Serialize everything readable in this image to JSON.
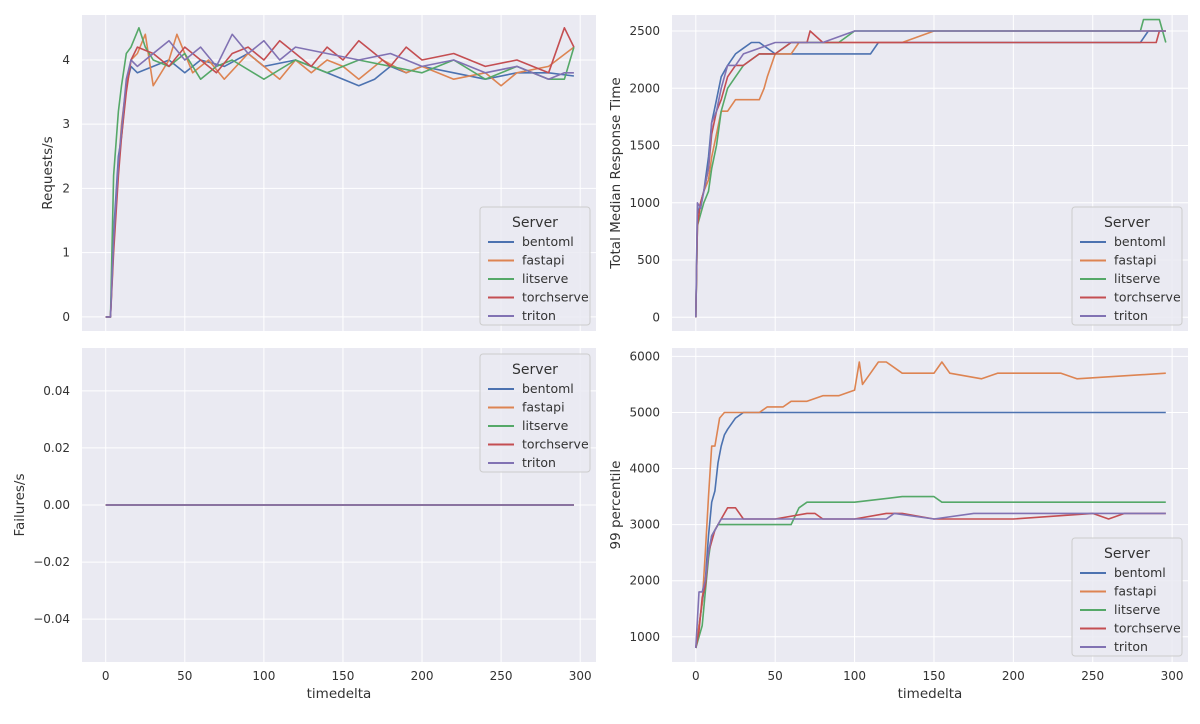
{
  "figure": {
    "x_shared_label": "timedelta",
    "legend_title": "Server"
  },
  "colors": {
    "background": "#eaeaf2",
    "grid": "#ffffff",
    "bentoml": "#4c72b0",
    "fastapi": "#dd8452",
    "litserve": "#55a868",
    "torchserve": "#c44e52",
    "triton": "#8172b3"
  },
  "chart_data": [
    {
      "type": "line",
      "xlabel": "",
      "ylabel": "Requests/s",
      "xlim": [
        -15,
        310
      ],
      "ylim": [
        -0.22,
        4.7
      ],
      "yticks": [
        0,
        1,
        2,
        3,
        4
      ],
      "legend": {
        "title": "Server",
        "placement": "bottom-right"
      },
      "series": [
        {
          "name": "bentoml",
          "x": [
            0,
            3,
            5,
            8,
            10,
            13,
            16,
            20,
            30,
            40,
            50,
            60,
            75,
            90,
            100,
            120,
            140,
            150,
            160,
            170,
            180,
            190,
            200,
            220,
            240,
            260,
            280,
            296
          ],
          "y": [
            0,
            0,
            1.3,
            2.5,
            2.8,
            3.6,
            3.9,
            3.8,
            3.9,
            4.0,
            3.8,
            4.0,
            3.9,
            4.1,
            3.9,
            4.0,
            3.8,
            3.7,
            3.6,
            3.7,
            3.9,
            3.8,
            3.9,
            3.8,
            3.7,
            3.8,
            3.8,
            3.75
          ]
        },
        {
          "name": "fastapi",
          "x": [
            0,
            3,
            5,
            8,
            10,
            13,
            16,
            20,
            25,
            30,
            40,
            45,
            55,
            65,
            75,
            90,
            100,
            110,
            120,
            130,
            140,
            150,
            160,
            175,
            190,
            200,
            220,
            240,
            250,
            260,
            280,
            296
          ],
          "y": [
            0,
            0,
            1.1,
            2.3,
            3.0,
            3.6,
            4.0,
            4.1,
            4.4,
            3.6,
            4.0,
            4.4,
            3.8,
            4.0,
            3.7,
            4.1,
            3.9,
            3.7,
            4.0,
            3.8,
            4.0,
            3.9,
            3.7,
            4.0,
            3.8,
            3.9,
            3.7,
            3.8,
            3.6,
            3.8,
            3.9,
            4.2
          ]
        },
        {
          "name": "litserve",
          "x": [
            0,
            3,
            5,
            8,
            10,
            13,
            16,
            21,
            25,
            30,
            40,
            50,
            60,
            70,
            80,
            100,
            120,
            140,
            160,
            180,
            200,
            220,
            240,
            260,
            280,
            290,
            296
          ],
          "y": [
            0,
            0,
            2.2,
            3.2,
            3.6,
            4.1,
            4.2,
            4.5,
            4.2,
            4.0,
            3.9,
            4.1,
            3.7,
            3.9,
            4.0,
            3.7,
            4.0,
            3.8,
            4.0,
            3.9,
            3.8,
            4.0,
            3.7,
            3.9,
            3.7,
            3.7,
            4.2
          ]
        },
        {
          "name": "torchserve",
          "x": [
            0,
            3,
            5,
            8,
            10,
            13,
            16,
            20,
            30,
            40,
            50,
            60,
            70,
            80,
            90,
            100,
            110,
            120,
            130,
            140,
            150,
            160,
            170,
            180,
            190,
            200,
            220,
            240,
            260,
            280,
            290,
            296
          ],
          "y": [
            0,
            0,
            1.0,
            2.2,
            2.8,
            3.5,
            4.0,
            4.2,
            4.1,
            3.9,
            4.2,
            4.0,
            3.8,
            4.1,
            4.2,
            4.0,
            4.3,
            4.1,
            3.9,
            4.2,
            4.0,
            4.3,
            4.1,
            3.9,
            4.2,
            4.0,
            4.1,
            3.9,
            4.0,
            3.8,
            4.5,
            4.2
          ]
        },
        {
          "name": "triton",
          "x": [
            0,
            3,
            5,
            8,
            10,
            13,
            16,
            20,
            30,
            40,
            50,
            60,
            70,
            80,
            90,
            100,
            110,
            120,
            140,
            160,
            180,
            200,
            220,
            240,
            260,
            280,
            290,
            296
          ],
          "y": [
            0,
            0,
            1.2,
            2.4,
            2.9,
            3.7,
            4.0,
            3.9,
            4.1,
            4.3,
            4.0,
            4.2,
            3.9,
            4.4,
            4.1,
            4.3,
            4.0,
            4.2,
            4.1,
            4.0,
            4.1,
            3.9,
            4.0,
            3.8,
            3.9,
            3.7,
            3.8,
            3.8
          ]
        }
      ]
    },
    {
      "type": "line",
      "xlabel": "",
      "ylabel": "Total Median Response Time",
      "xlim": [
        -15,
        310
      ],
      "ylim": [
        -120,
        2640
      ],
      "yticks": [
        0,
        500,
        1000,
        1500,
        2000,
        2500
      ],
      "legend": {
        "title": "Server",
        "placement": "bottom-right"
      },
      "series": [
        {
          "name": "bentoml",
          "x": [
            0,
            1,
            3,
            5,
            8,
            10,
            13,
            16,
            20,
            25,
            30,
            35,
            40,
            50,
            60,
            80,
            100,
            110,
            115,
            120,
            140,
            200,
            280,
            285,
            296
          ],
          "y": [
            0,
            900,
            1000,
            1100,
            1400,
            1700,
            1900,
            2100,
            2200,
            2300,
            2350,
            2400,
            2400,
            2300,
            2300,
            2300,
            2300,
            2300,
            2400,
            2400,
            2400,
            2400,
            2400,
            2500,
            2500
          ]
        },
        {
          "name": "fastapi",
          "x": [
            0,
            1,
            3,
            5,
            8,
            10,
            13,
            16,
            20,
            25,
            30,
            40,
            43,
            45,
            50,
            60,
            65,
            80,
            100,
            130,
            150,
            200,
            296
          ],
          "y": [
            0,
            800,
            1000,
            1100,
            1200,
            1400,
            1600,
            1800,
            1800,
            1900,
            1900,
            1900,
            2000,
            2100,
            2300,
            2300,
            2400,
            2400,
            2400,
            2400,
            2500,
            2500,
            2500
          ]
        },
        {
          "name": "litserve",
          "x": [
            0,
            1,
            3,
            5,
            8,
            10,
            13,
            16,
            20,
            25,
            30,
            40,
            50,
            60,
            70,
            90,
            100,
            150,
            200,
            250,
            280,
            282,
            292,
            296
          ],
          "y": [
            0,
            800,
            900,
            1000,
            1100,
            1300,
            1500,
            1800,
            2000,
            2100,
            2200,
            2300,
            2300,
            2400,
            2400,
            2400,
            2500,
            2500,
            2500,
            2500,
            2500,
            2600,
            2600,
            2400
          ]
        },
        {
          "name": "torchserve",
          "x": [
            0,
            1,
            3,
            5,
            8,
            10,
            13,
            16,
            20,
            25,
            30,
            40,
            50,
            60,
            70,
            72,
            80,
            100,
            150,
            200,
            250,
            290,
            292,
            296
          ],
          "y": [
            0,
            800,
            1000,
            1100,
            1300,
            1600,
            1800,
            1900,
            2100,
            2200,
            2200,
            2300,
            2300,
            2400,
            2400,
            2500,
            2400,
            2400,
            2400,
            2400,
            2400,
            2400,
            2500,
            2500
          ]
        },
        {
          "name": "triton",
          "x": [
            0,
            1,
            3,
            5,
            8,
            10,
            13,
            16,
            20,
            25,
            30,
            40,
            50,
            60,
            80,
            100,
            150,
            200,
            250,
            296
          ],
          "y": [
            0,
            1000,
            950,
            1100,
            1300,
            1700,
            1800,
            2000,
            2200,
            2200,
            2300,
            2350,
            2400,
            2400,
            2400,
            2500,
            2500,
            2500,
            2500,
            2500
          ]
        }
      ]
    },
    {
      "type": "line",
      "xlabel": "timedelta",
      "ylabel": "Failures/s",
      "xlim": [
        -15,
        310
      ],
      "ylim": [
        -0.055,
        0.055
      ],
      "yticks": [
        -0.04,
        -0.02,
        0.0,
        0.02,
        0.04
      ],
      "ytick_labels": [
        "−0.04",
        "−0.02",
        "0.00",
        "0.02",
        "0.04"
      ],
      "legend": {
        "title": "Server",
        "placement": "top-right"
      },
      "series": [
        {
          "name": "bentoml",
          "x": [
            0,
            296
          ],
          "y": [
            0,
            0
          ]
        },
        {
          "name": "fastapi",
          "x": [
            0,
            296
          ],
          "y": [
            0,
            0
          ]
        },
        {
          "name": "litserve",
          "x": [
            0,
            296
          ],
          "y": [
            0,
            0
          ]
        },
        {
          "name": "torchserve",
          "x": [
            0,
            296
          ],
          "y": [
            0,
            0
          ]
        },
        {
          "name": "triton",
          "x": [
            0,
            296
          ],
          "y": [
            0,
            0
          ]
        }
      ]
    },
    {
      "type": "line",
      "xlabel": "timedelta",
      "ylabel": "99 percentile",
      "xlim": [
        -15,
        310
      ],
      "ylim": [
        550,
        6150
      ],
      "yticks": [
        1000,
        2000,
        3000,
        4000,
        5000,
        6000
      ],
      "legend": {
        "title": "Server",
        "placement": "bottom-right"
      },
      "series": [
        {
          "name": "bentoml",
          "x": [
            0,
            2,
            4,
            6,
            8,
            10,
            12,
            14,
            16,
            18,
            20,
            25,
            30,
            50,
            100,
            296
          ],
          "y": [
            800,
            1200,
            1600,
            2000,
            2800,
            3400,
            3600,
            4100,
            4400,
            4600,
            4700,
            4900,
            5000,
            5000,
            5000,
            5000
          ]
        },
        {
          "name": "fastapi",
          "x": [
            0,
            2,
            4,
            6,
            8,
            10,
            12,
            15,
            18,
            20,
            30,
            40,
            45,
            50,
            55,
            60,
            70,
            80,
            90,
            100,
            103,
            105,
            110,
            115,
            120,
            130,
            150,
            155,
            160,
            180,
            190,
            200,
            230,
            240,
            296
          ],
          "y": [
            800,
            1200,
            1600,
            2500,
            3500,
            4400,
            4400,
            4900,
            5000,
            5000,
            5000,
            5000,
            5100,
            5100,
            5100,
            5200,
            5200,
            5300,
            5300,
            5400,
            5900,
            5500,
            5700,
            5900,
            5900,
            5700,
            5700,
            5900,
            5700,
            5600,
            5700,
            5700,
            5700,
            5600,
            5700
          ]
        },
        {
          "name": "litserve",
          "x": [
            0,
            2,
            4,
            6,
            8,
            10,
            12,
            14,
            16,
            20,
            40,
            60,
            65,
            70,
            100,
            130,
            150,
            155,
            200,
            250,
            296
          ],
          "y": [
            800,
            1000,
            1200,
            1800,
            2400,
            2800,
            2900,
            3000,
            3000,
            3000,
            3000,
            3000,
            3300,
            3400,
            3400,
            3500,
            3500,
            3400,
            3400,
            3400,
            3400
          ]
        },
        {
          "name": "torchserve",
          "x": [
            0,
            2,
            4,
            6,
            8,
            10,
            12,
            14,
            16,
            20,
            25,
            30,
            50,
            70,
            75,
            80,
            100,
            120,
            130,
            150,
            200,
            250,
            260,
            270,
            296
          ],
          "y": [
            800,
            1100,
            1700,
            1900,
            2500,
            2700,
            2900,
            3000,
            3100,
            3300,
            3300,
            3100,
            3100,
            3200,
            3200,
            3100,
            3100,
            3200,
            3200,
            3100,
            3100,
            3200,
            3100,
            3200,
            3200
          ]
        },
        {
          "name": "triton",
          "x": [
            0,
            2,
            4,
            6,
            8,
            10,
            12,
            14,
            16,
            20,
            30,
            50,
            100,
            120,
            125,
            150,
            175,
            200,
            250,
            296
          ],
          "y": [
            800,
            1800,
            1800,
            2000,
            2500,
            2800,
            2900,
            3000,
            3100,
            3100,
            3100,
            3100,
            3100,
            3100,
            3200,
            3100,
            3200,
            3200,
            3200,
            3200
          ]
        }
      ]
    }
  ]
}
